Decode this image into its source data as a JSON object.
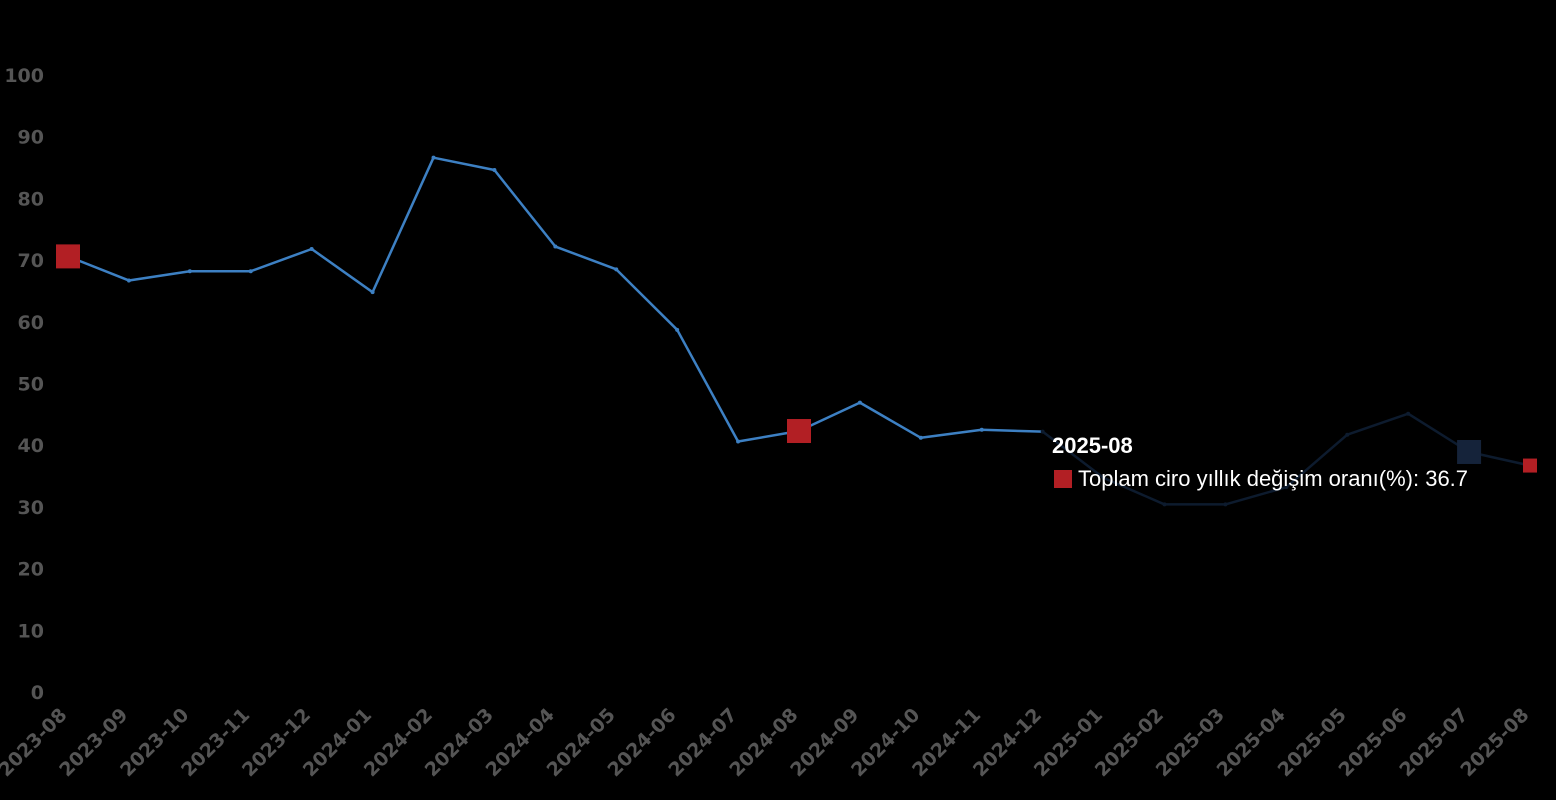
{
  "chart_data": {
    "type": "line",
    "title": "",
    "xlabel": "",
    "ylabel": "",
    "ylim": [
      0,
      100
    ],
    "yticks": [
      "0",
      "10",
      "20",
      "30",
      "40",
      "50",
      "60",
      "70",
      "80",
      "90",
      "100"
    ],
    "categories": [
      "2023-08",
      "2023-09",
      "2023-10",
      "2023-11",
      "2023-12",
      "2024-01",
      "2024-02",
      "2024-03",
      "2024-04",
      "2024-05",
      "2024-06",
      "2024-07",
      "2024-08",
      "2024-09",
      "2024-10",
      "2024-11",
      "2024-12",
      "2025-01",
      "2025-02",
      "2025-03",
      "2025-04",
      "2025-05",
      "2025-06",
      "2025-07",
      "2025-08"
    ],
    "series": [
      {
        "name": "Toplam ciro yıllık değişim oranı(%)",
        "values": [
          70.6,
          66.7,
          68.2,
          68.2,
          71.8,
          64.8,
          86.6,
          84.6,
          72.2,
          68.5,
          58.7,
          40.6,
          42.3,
          46.9,
          41.2,
          42.5,
          42.2,
          34.7,
          30.4,
          30.4,
          33.2,
          41.7,
          45.1,
          38.9,
          36.7
        ]
      }
    ],
    "markers": [
      {
        "category": "2023-08",
        "value": 70.6
      },
      {
        "category": "2024-08",
        "value": 42.3
      },
      {
        "category": "2025-08",
        "value": 36.7
      }
    ],
    "hidden_by_tooltip_from": "2024-12",
    "grid": false,
    "legend": "none"
  },
  "tooltip": {
    "title": "2025-08",
    "series_label": "Toplam ciro yıllık değişim oranı(%)",
    "value": "36.7",
    "text": "Toplam ciro yıllık değişim oranı(%): 36.7"
  },
  "colors": {
    "background": "#000000",
    "line": "#3d80c3",
    "marker": "#b21f24",
    "tooltip_marker_dim": "#15233a",
    "axis_text": "#555555",
    "tooltip_text": "#ffffff"
  }
}
